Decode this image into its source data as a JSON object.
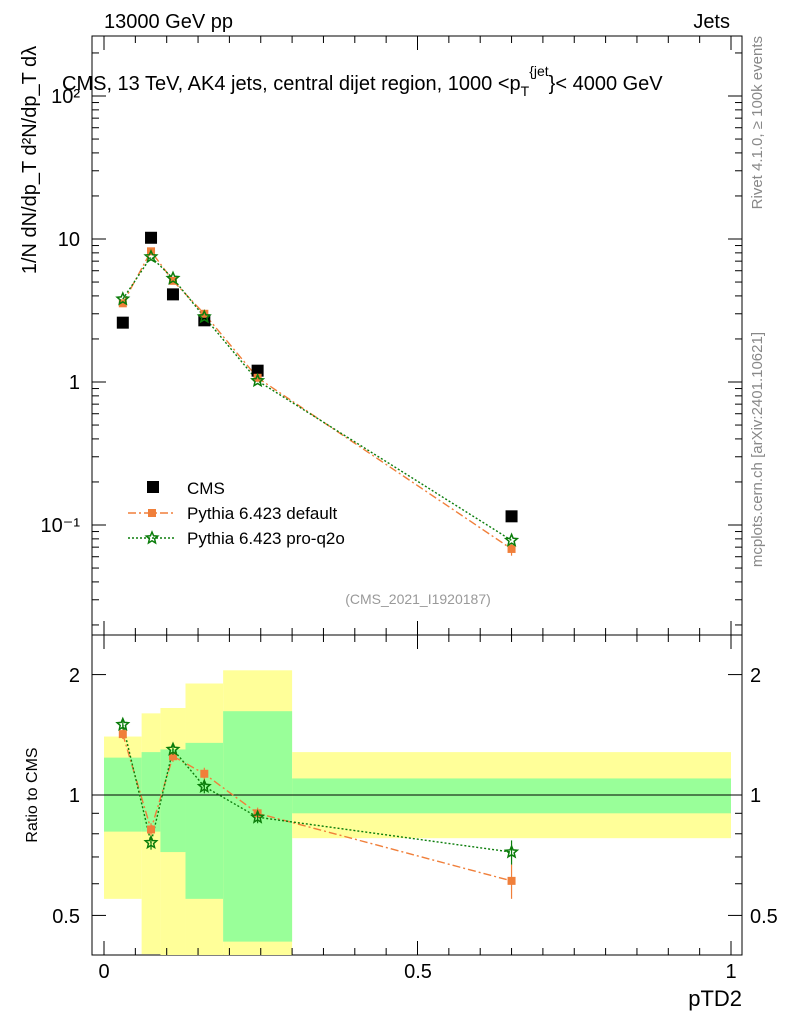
{
  "header": {
    "left": "13000 GeV pp",
    "right": "Jets"
  },
  "title": "CMS, 13 TeV, AK4 jets, central dijet region, 1000 <p",
  "title_sup": "{jet",
  "title_sub": "T",
  "title_end": "}< 4000 GeV",
  "side_labels": {
    "rivet": "Rivet 4.1.0, ≥ 100k events",
    "mcplots": "mcplots.cern.ch [arXiv:2401.10621]"
  },
  "watermark": "(CMS_2021_I1920187)",
  "ylabel_main": "1/N dN/dp_T d²N/dp_T dλ",
  "ylabel_ratio": "Ratio to CMS",
  "xlabel": "pTD2",
  "colors": {
    "data": "#000000",
    "default": "#f07f3a",
    "proq2o": "#0b7d0b",
    "band_inner": "#99ff99",
    "band_outer": "#ffff99"
  },
  "chart_data": [
    {
      "type": "scatter",
      "panel": "main",
      "yscale": "log",
      "xlim": [
        -0.02,
        1.0
      ],
      "ylim": [
        0.02,
        300
      ],
      "y_tick_labels": [
        "10⁻¹",
        "1",
        "10",
        "10²"
      ],
      "x": [
        0.03,
        0.075,
        0.11,
        0.16,
        0.245,
        0.65
      ],
      "series": [
        {
          "name": "CMS",
          "values": [
            2.6,
            10.2,
            4.1,
            2.7,
            1.2,
            0.115
          ]
        },
        {
          "name": "Pythia 6.423 default",
          "values": [
            3.55,
            8.2,
            5.1,
            3.0,
            1.07,
            0.068
          ],
          "errors": [
            0.15,
            0.3,
            0.2,
            0.12,
            0.05,
            0.007
          ]
        },
        {
          "name": "Pythia 6.423 pro-q2o",
          "values": [
            3.8,
            7.5,
            5.3,
            2.85,
            1.02,
            0.078
          ],
          "errors": [
            0.15,
            0.3,
            0.2,
            0.12,
            0.05,
            0.007
          ]
        }
      ]
    },
    {
      "type": "scatter",
      "panel": "ratio",
      "yscale": "log",
      "xlim": [
        -0.02,
        1.0
      ],
      "ylim": [
        0.42,
        2.35
      ],
      "ylabel": "Ratio to CMS",
      "xlabel": "pTD2",
      "y_tick_labels": [
        "0.5",
        "1",
        "2"
      ],
      "x_tick_labels": [
        "0",
        "0.5",
        "1"
      ],
      "bins": [
        {
          "low": 0.0,
          "high": 0.06,
          "inner": [
            0.81,
            1.24
          ],
          "outer": [
            0.55,
            1.4
          ]
        },
        {
          "low": 0.06,
          "high": 0.09,
          "inner": [
            0.81,
            1.28
          ],
          "outer": [
            0.4,
            1.6
          ]
        },
        {
          "low": 0.09,
          "high": 0.13,
          "inner": [
            0.72,
            1.3
          ],
          "outer": [
            0.35,
            1.65
          ]
        },
        {
          "low": 0.13,
          "high": 0.19,
          "inner": [
            0.55,
            1.35
          ],
          "outer": [
            0.35,
            1.9
          ]
        },
        {
          "low": 0.19,
          "high": 0.3,
          "inner": [
            0.43,
            1.62
          ],
          "outer": [
            0.35,
            2.05
          ]
        },
        {
          "low": 0.3,
          "high": 1.0,
          "inner": [
            0.9,
            1.1
          ],
          "outer": [
            0.78,
            1.28
          ]
        }
      ],
      "x": [
        0.03,
        0.075,
        0.11,
        0.16,
        0.245,
        0.65
      ],
      "series": [
        {
          "name": "Pythia 6.423 default",
          "values": [
            1.42,
            0.82,
            1.25,
            1.13,
            0.9,
            0.61
          ],
          "errors": [
            0.04,
            0.03,
            0.04,
            0.04,
            0.03,
            0.06
          ]
        },
        {
          "name": "Pythia 6.423 pro-q2o",
          "values": [
            1.5,
            0.76,
            1.3,
            1.05,
            0.88,
            0.72
          ],
          "errors": [
            0.04,
            0.03,
            0.04,
            0.04,
            0.03,
            0.05
          ]
        }
      ]
    }
  ]
}
